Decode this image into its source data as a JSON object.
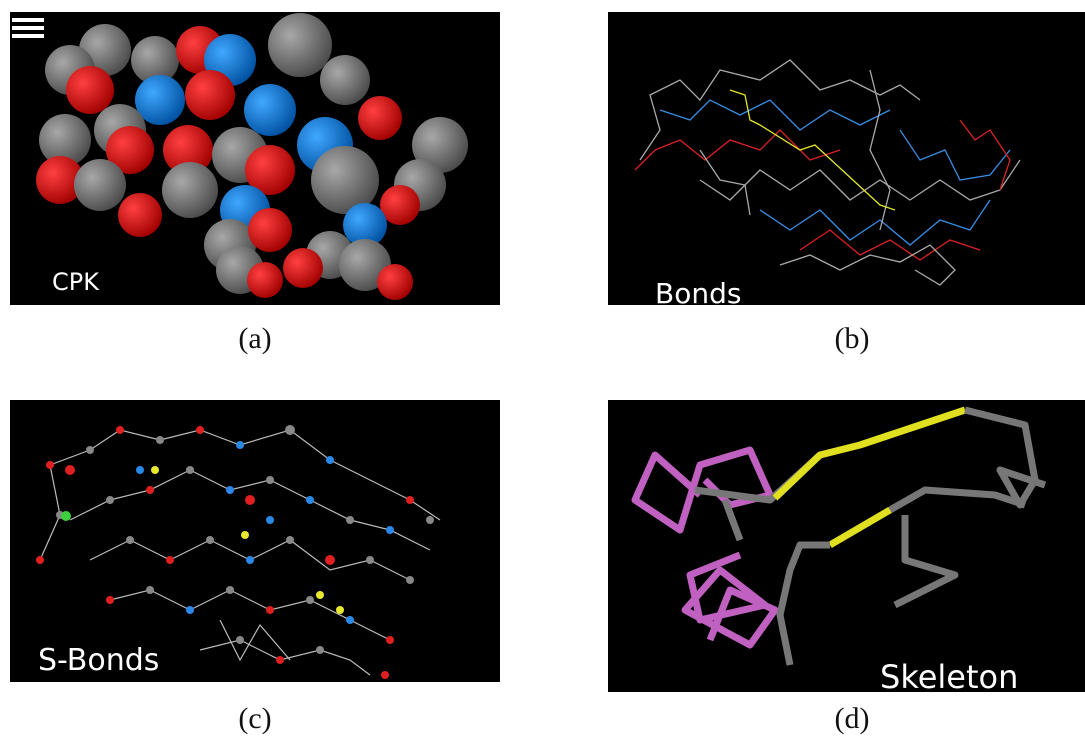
{
  "panels": [
    {
      "label": "CPK",
      "caption": "(a)"
    },
    {
      "label": "Bonds",
      "caption": "(b)"
    },
    {
      "label": "S-Bonds",
      "caption": "(c)"
    },
    {
      "label": "Skeleton",
      "caption": "(d)"
    }
  ]
}
